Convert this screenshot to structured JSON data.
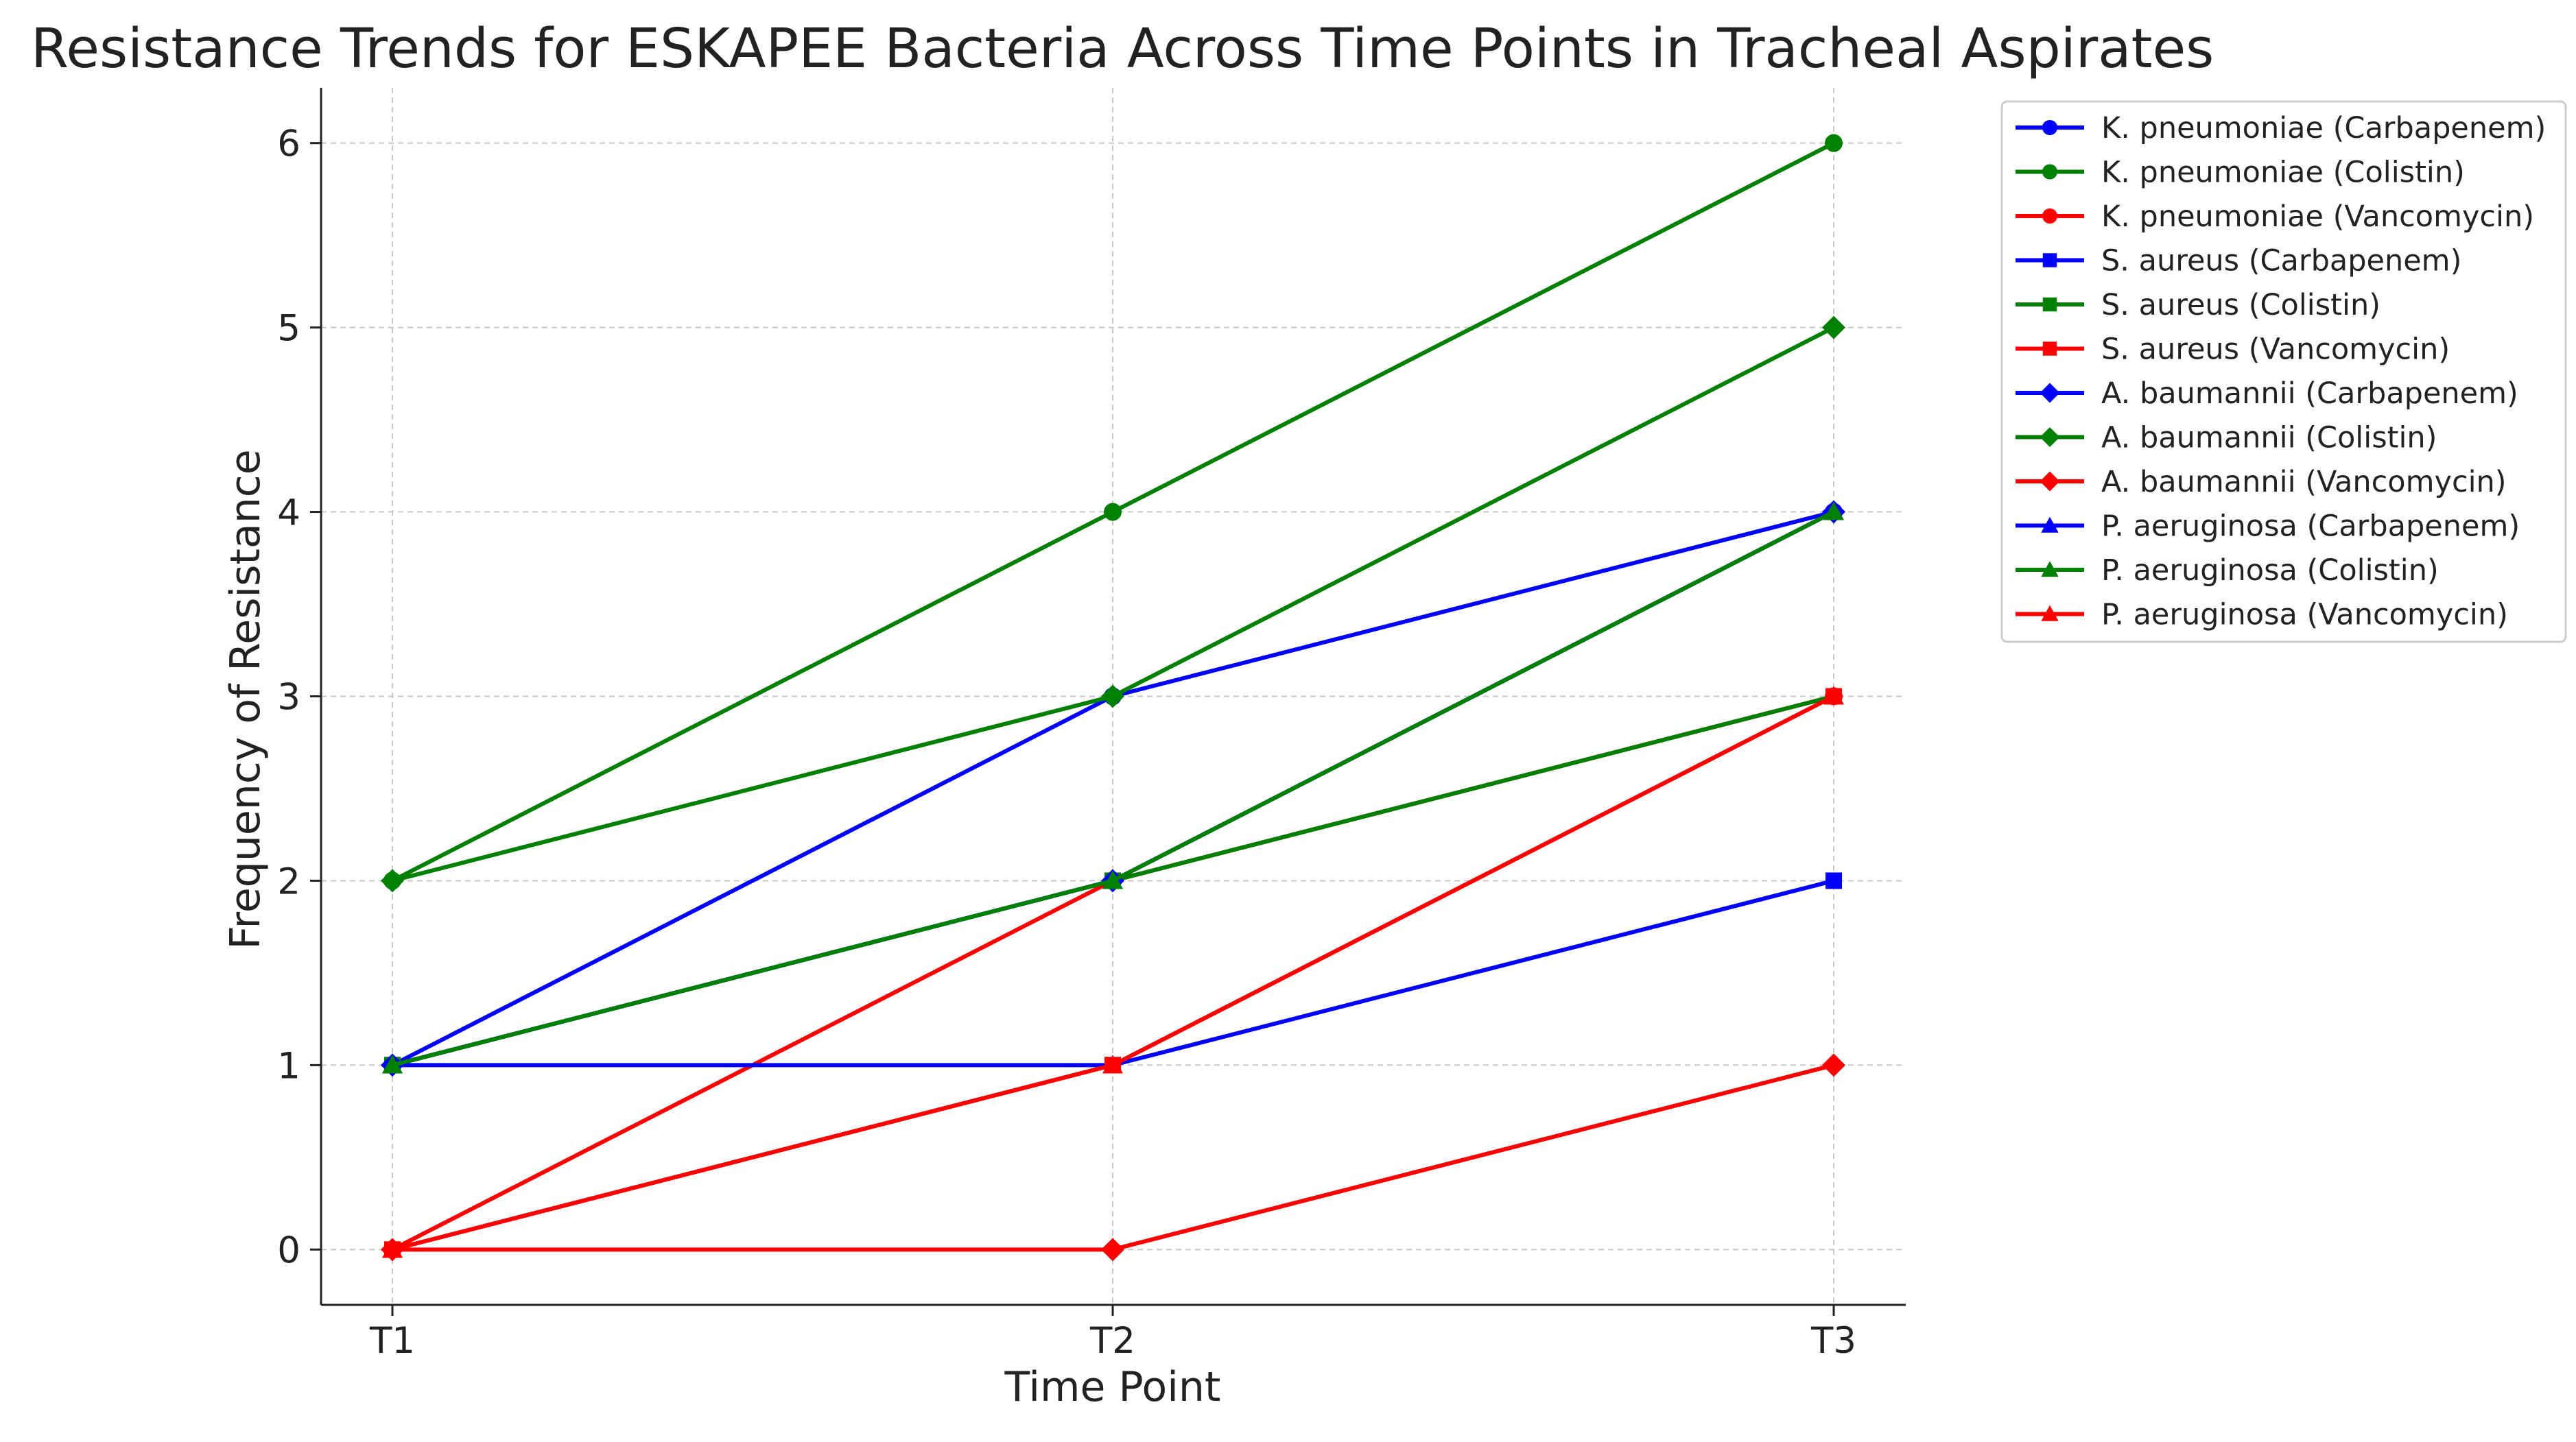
{
  "chart_data": {
    "type": "line",
    "title": "Resistance Trends for ESKAPEE Bacteria Across Time Points in Tracheal Aspirates",
    "xlabel": "Time Point",
    "ylabel": "Frequency of Resistance",
    "categories": [
      "T1",
      "T2",
      "T3"
    ],
    "ylim": [
      -0.3,
      6.3
    ],
    "yticks": [
      "0",
      "1",
      "2",
      "3",
      "4",
      "5",
      "6"
    ],
    "grid": true,
    "legend_position": "outside-right-top",
    "series": [
      {
        "name": "K. pneumoniae (Carbapenem)",
        "values": [
          1,
          3,
          4
        ],
        "color": "#0000ff",
        "marker": "circle"
      },
      {
        "name": "K. pneumoniae (Colistin)",
        "values": [
          2,
          4,
          6
        ],
        "color": "#008000",
        "marker": "circle"
      },
      {
        "name": "K. pneumoniae (Vancomycin)",
        "values": [
          0,
          2,
          3
        ],
        "color": "#ff0000",
        "marker": "circle"
      },
      {
        "name": "S. aureus (Carbapenem)",
        "values": [
          1,
          1,
          2
        ],
        "color": "#0000ff",
        "marker": "square"
      },
      {
        "name": "S. aureus (Colistin)",
        "values": [
          1,
          2,
          3
        ],
        "color": "#008000",
        "marker": "square"
      },
      {
        "name": "S. aureus (Vancomycin)",
        "values": [
          0,
          1,
          3
        ],
        "color": "#ff0000",
        "marker": "square"
      },
      {
        "name": "A. baumannii (Carbapenem)",
        "values": [
          1,
          2,
          4
        ],
        "color": "#0000ff",
        "marker": "diamond"
      },
      {
        "name": "A. baumannii (Colistin)",
        "values": [
          2,
          3,
          5
        ],
        "color": "#008000",
        "marker": "diamond"
      },
      {
        "name": "A. baumannii (Vancomycin)",
        "values": [
          0,
          0,
          1
        ],
        "color": "#ff0000",
        "marker": "diamond"
      },
      {
        "name": "P. aeruginosa (Carbapenem)",
        "values": [
          1,
          2,
          4
        ],
        "color": "#0000ff",
        "marker": "triangle"
      },
      {
        "name": "P. aeruginosa (Colistin)",
        "values": [
          1,
          2,
          4
        ],
        "color": "#008000",
        "marker": "triangle"
      },
      {
        "name": "P. aeruginosa (Vancomycin)",
        "values": [
          0,
          1,
          3
        ],
        "color": "#ff0000",
        "marker": "triangle"
      }
    ]
  }
}
